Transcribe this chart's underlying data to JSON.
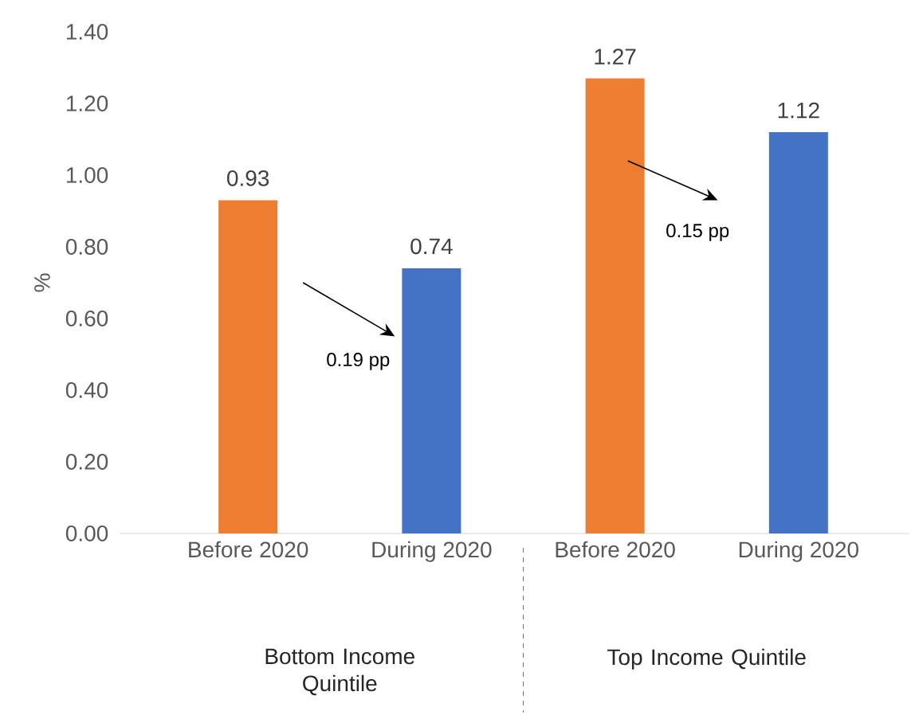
{
  "chart_data": {
    "type": "bar",
    "ylabel": "%",
    "categories": [
      "Before 2020",
      "During 2020",
      "Before 2020",
      "During 2020"
    ],
    "values": [
      0.93,
      0.74,
      1.27,
      1.12
    ],
    "colors": [
      "#ed7d31",
      "#4472c4",
      "#ed7d31",
      "#4472c4"
    ],
    "data_labels": true,
    "ylim": [
      0,
      1.4
    ],
    "yticks": [
      {
        "value": 0,
        "label": "0.00"
      },
      {
        "value": 0.2,
        "label": "0.20"
      },
      {
        "value": 0.4,
        "label": "0.40"
      },
      {
        "value": 0.6,
        "label": "0.60"
      },
      {
        "value": 0.8,
        "label": "0.80"
      },
      {
        "value": 1.0,
        "label": "1.00"
      },
      {
        "value": 1.2,
        "label": "1.20"
      },
      {
        "value": 1.4,
        "label": "1.40"
      }
    ],
    "annotations": [
      "0.19 pp",
      "0.15 pp",
      "Bottom Income Quintile",
      "Top Income Quintile"
    ]
  }
}
